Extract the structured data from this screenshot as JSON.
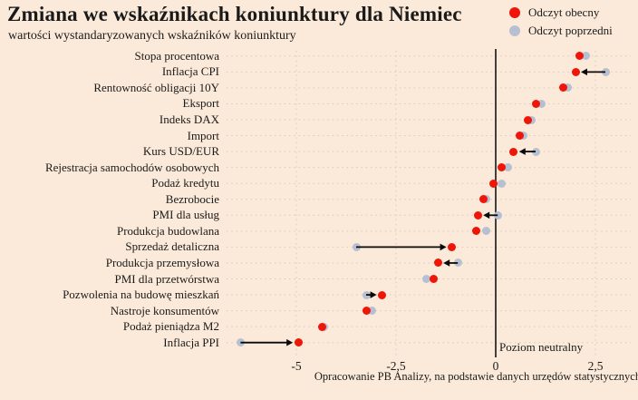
{
  "header": {
    "title": "Zmiana we wskaźnikach koniunktury dla Niemiec",
    "subtitle": "wartości wystandaryzowanych wskaźników koniunktury"
  },
  "legend": {
    "items": [
      {
        "label": "Odczyt obecny",
        "color": "#ee1509"
      },
      {
        "label": "Odczyt poprzedni",
        "color": "#b6c0d2"
      }
    ]
  },
  "footer": {
    "source": "Opracowanie PB Analizy, na podstawie danych urzędów statystycznych"
  },
  "colors": {
    "background": "#fbead9",
    "current": "#ee1509",
    "previous": "#b6c0d2",
    "grid": "#d9c9ba",
    "axis": "#141414",
    "arrow": "#0a0a0a"
  },
  "chart_data": {
    "type": "dumbbell",
    "orientation": "horizontal",
    "title": "Zmiana we wskaźnikach koniunktury dla Niemiec",
    "subtitle": "wartości wystandaryzowanych wskaźników koniunktury",
    "categories": [
      "Stopa procentowa",
      "Inflacja CPI",
      "Rentowność obligacji 10Y",
      "Eksport",
      "Indeks DAX",
      "Import",
      "Kurs USD/EUR",
      "Rejestracja samochodów osobowych",
      "Podaż kredytu",
      "Bezrobocie",
      "PMI dla usług",
      "Produkcja budowlana",
      "Sprzedaż detaliczna",
      "Produkcja przemysłowa",
      "PMI dla przetwórstwa",
      "Pozwolenia na budowę mieszkań",
      "Nastroje konsumentów",
      "Podaż pieniądza M2",
      "Inflacja PPI"
    ],
    "series": [
      {
        "name": "Odczyt obecny",
        "values": [
          2.1,
          2.0,
          1.7,
          1.0,
          0.8,
          0.6,
          0.45,
          0.15,
          -0.05,
          -0.3,
          -0.45,
          -0.5,
          -1.1,
          -1.45,
          -1.55,
          -2.85,
          -3.25,
          -4.35,
          -4.95
        ]
      },
      {
        "name": "Odczyt poprzedni",
        "values": [
          2.25,
          2.75,
          1.8,
          1.15,
          0.9,
          0.7,
          1.0,
          0.3,
          0.15,
          -0.25,
          0.05,
          -0.25,
          -3.5,
          -0.95,
          -1.75,
          -3.25,
          -3.1,
          -4.3,
          -6.4
        ]
      }
    ],
    "change_arrows": [
      false,
      true,
      false,
      false,
      false,
      false,
      true,
      false,
      false,
      false,
      true,
      false,
      true,
      true,
      false,
      true,
      false,
      false,
      true
    ],
    "x_ticks": [
      {
        "value": -5,
        "label": "-5"
      },
      {
        "value": -2.5,
        "label": "-2,5"
      },
      {
        "value": 0,
        "label": "0"
      },
      {
        "value": 2.5,
        "label": "2,5"
      }
    ],
    "xlim": [
      -6.8,
      3.45
    ],
    "grid": true,
    "legend_position": "top-right",
    "neutral_line": {
      "value": 0,
      "label": "Poziom neutralny"
    }
  }
}
